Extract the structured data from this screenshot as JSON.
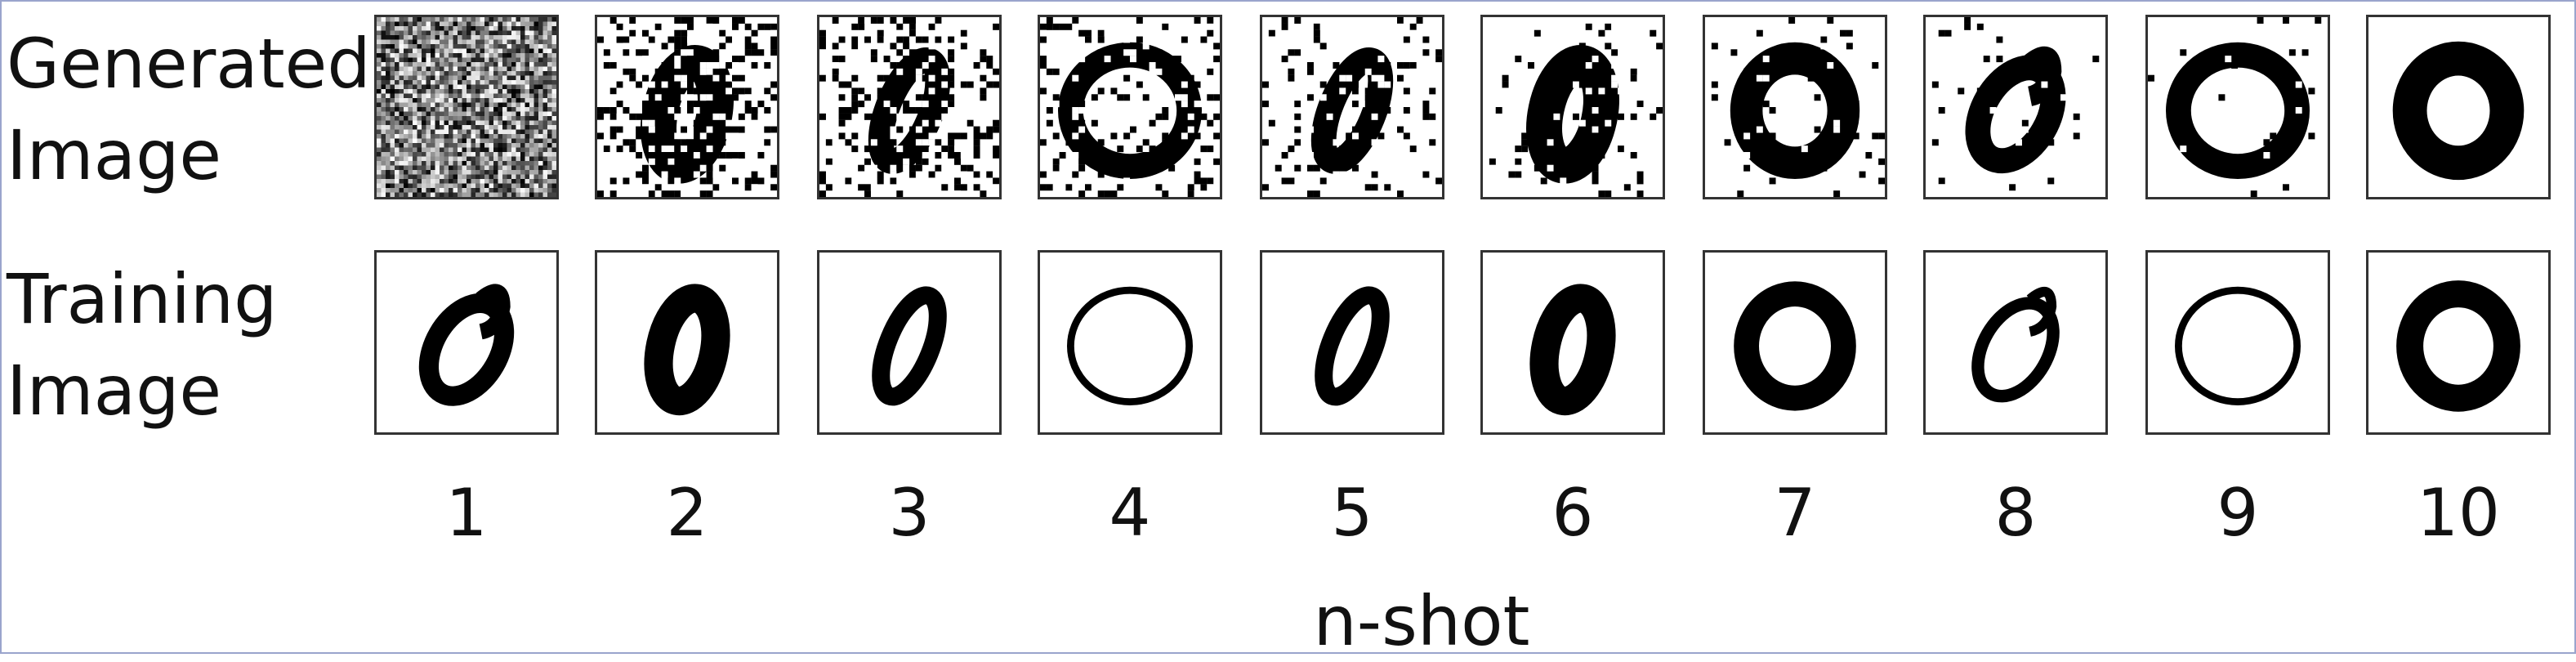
{
  "rows": {
    "generated": {
      "line1": "Generated",
      "line2": "Image"
    },
    "training": {
      "line1": "Training",
      "line2": "Image"
    }
  },
  "shots": [
    "1",
    "2",
    "3",
    "4",
    "5",
    "6",
    "7",
    "8",
    "9",
    "10"
  ],
  "xlabel": "n-shot",
  "generated_noise_levels": [
    1.0,
    0.5,
    0.42,
    0.3,
    0.2,
    0.12,
    0.06,
    0.05,
    0.03,
    0.0
  ],
  "colors": {
    "ink": "#000000",
    "frame": "#9aa4cc",
    "tile_border": "#333333"
  }
}
